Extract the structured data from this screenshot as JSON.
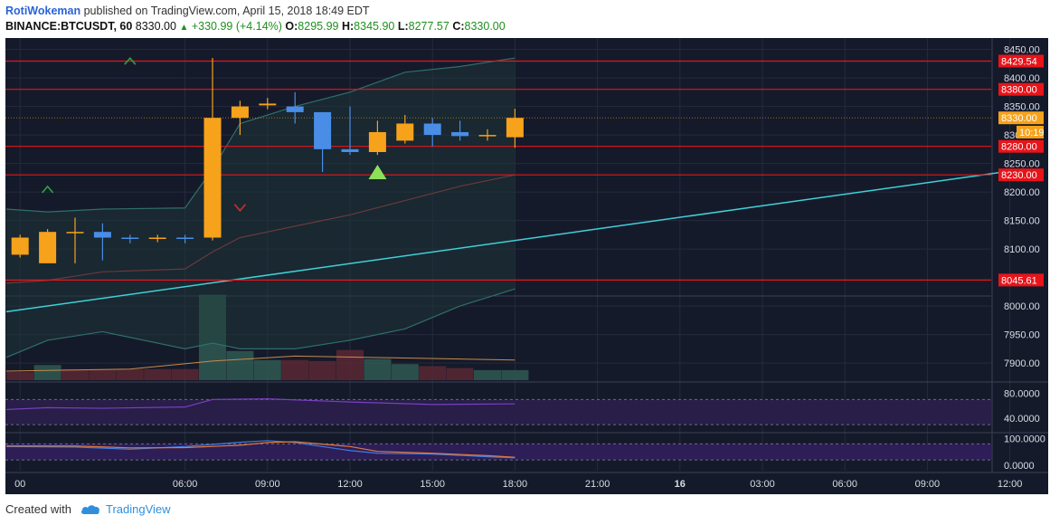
{
  "header": {
    "author": "RotiWokeman",
    "published_text": "published on TradingView.com, April 15, 2018 18:49 EDT"
  },
  "symbol": {
    "name": "BINANCE:BTCUSDT, 60",
    "last": "8330.00",
    "change": "+330.99 (+4.14%)",
    "open_label": "O:",
    "open": "8295.99",
    "high_label": "H:",
    "high": "8345.90",
    "low_label": "L:",
    "low": "8277.57",
    "close_label": "C:",
    "close": "8330.00"
  },
  "footer": {
    "created_with": "Created with",
    "brand": "TradingView"
  },
  "colors": {
    "background": "#151a2a",
    "up_candle": "#f7a21b",
    "down_candle": "#4a8de6",
    "level_line": "#e8141a",
    "trend_line": "#3fd0d8",
    "bollinger": "#2f6f6a",
    "rsi": "#7a3fc2"
  },
  "chart_data": {
    "type": "candlestick",
    "symbol": "BINANCE:BTCUSDT",
    "interval": "60",
    "price_axis": {
      "ylim": [
        7870,
        8470
      ],
      "ticks": [
        "8450.00",
        "8400.00",
        "8350.00",
        "8300.00",
        "8250.00",
        "8200.00",
        "8150.00",
        "8100.00",
        "8000.00",
        "7950.00",
        "7900.00"
      ],
      "tick_values": [
        8450,
        8400,
        8350,
        8300,
        8250,
        8200,
        8150,
        8100,
        8000,
        7950,
        7900
      ]
    },
    "time_axis": {
      "labels": [
        "00",
        "06:00",
        "09:00",
        "12:00",
        "15:00",
        "18:00",
        "21:00",
        "16",
        "03:00",
        "06:00",
        "09:00",
        "12:00"
      ],
      "bold": [
        false,
        false,
        false,
        false,
        false,
        false,
        false,
        true,
        false,
        false,
        false,
        false
      ],
      "hours": [
        0,
        6,
        9,
        12,
        15,
        18,
        21,
        24,
        27,
        30,
        33,
        36
      ]
    },
    "candles": [
      {
        "t": 0,
        "o": 8090,
        "h": 8125,
        "l": 8085,
        "c": 8120
      },
      {
        "t": 1,
        "o": 8075,
        "h": 8135,
        "l": 8075,
        "c": 8130
      },
      {
        "t": 2,
        "o": 8130,
        "h": 8155,
        "l": 8075,
        "c": 8130
      },
      {
        "t": 3,
        "o": 8130,
        "h": 8145,
        "l": 8080,
        "c": 8120
      },
      {
        "t": 4,
        "o": 8120,
        "h": 8125,
        "l": 8110,
        "c": 8118
      },
      {
        "t": 5,
        "o": 8118,
        "h": 8125,
        "l": 8112,
        "c": 8120
      },
      {
        "t": 6,
        "o": 8120,
        "h": 8125,
        "l": 8110,
        "c": 8118
      },
      {
        "t": 7,
        "o": 8120,
        "h": 8435,
        "l": 8115,
        "c": 8330
      },
      {
        "t": 8,
        "o": 8330,
        "h": 8360,
        "l": 8300,
        "c": 8350
      },
      {
        "t": 9,
        "o": 8352,
        "h": 8365,
        "l": 8345,
        "c": 8355
      },
      {
        "t": 10,
        "o": 8350,
        "h": 8375,
        "l": 8320,
        "c": 8340
      },
      {
        "t": 11,
        "o": 8340,
        "h": 8340,
        "l": 8235,
        "c": 8275
      },
      {
        "t": 12,
        "o": 8275,
        "h": 8350,
        "l": 8265,
        "c": 8270
      },
      {
        "t": 13,
        "o": 8270,
        "h": 8325,
        "l": 8265,
        "c": 8305
      },
      {
        "t": 14,
        "o": 8290,
        "h": 8335,
        "l": 8285,
        "c": 8320
      },
      {
        "t": 15,
        "o": 8320,
        "h": 8330,
        "l": 8280,
        "c": 8300
      },
      {
        "t": 16,
        "o": 8305,
        "h": 8325,
        "l": 8290,
        "c": 8298
      },
      {
        "t": 17,
        "o": 8298,
        "h": 8310,
        "l": 8290,
        "c": 8300
      },
      {
        "t": 18,
        "o": 8295.99,
        "h": 8345.9,
        "l": 8277.57,
        "c": 8330.0
      }
    ],
    "horizontal_levels": [
      {
        "label": "8429.54",
        "value": 8429.54
      },
      {
        "label": "8380.00",
        "value": 8380.0
      },
      {
        "label": "8280.00",
        "value": 8280.0
      },
      {
        "label": "8230.00",
        "value": 8230.0
      },
      {
        "label": "8045.61",
        "value": 8045.61
      }
    ],
    "last_price_tag": {
      "label": "8330.00",
      "value": 8330.0
    },
    "countdown_tag": {
      "label": "10:19",
      "value": 8305
    },
    "trend_line": {
      "start": {
        "t": -0.5,
        "price": 7990
      },
      "end": {
        "t": 36.5,
        "price": 8240
      }
    },
    "bollinger": {
      "t": [
        -0.5,
        1,
        3,
        6,
        7,
        8,
        10,
        12,
        14,
        16,
        18
      ],
      "upper": [
        8170,
        8165,
        8170,
        8172,
        8240,
        8320,
        8350,
        8375,
        8410,
        8420,
        8435
      ],
      "basis": [
        8040,
        8045,
        8060,
        8065,
        8095,
        8120,
        8140,
        8160,
        8185,
        8210,
        8230
      ],
      "lower": [
        7910,
        7940,
        7955,
        7925,
        7935,
        7925,
        7925,
        7940,
        7960,
        8000,
        8030
      ]
    },
    "volume": {
      "t": [
        0,
        1,
        2,
        3,
        4,
        5,
        6,
        7,
        8,
        9,
        10,
        11,
        12,
        13,
        14,
        15,
        16,
        17,
        18
      ],
      "values": [
        8,
        15,
        11,
        11,
        11,
        11,
        11,
        85,
        29,
        20,
        20,
        19,
        30,
        21,
        16,
        14,
        12,
        10,
        10
      ],
      "up": [
        false,
        true,
        false,
        false,
        false,
        false,
        false,
        true,
        true,
        true,
        false,
        false,
        false,
        true,
        true,
        false,
        false,
        true,
        true
      ],
      "volume_ma_t": [
        -0.5,
        4,
        7,
        10,
        14,
        18
      ],
      "volume_ma": [
        9,
        11,
        19,
        24,
        22,
        20
      ]
    },
    "signals": [
      {
        "t": 1,
        "type": "long",
        "price": 8205
      },
      {
        "t": 4,
        "type": "long",
        "price": 8430
      },
      {
        "t": 8,
        "type": "short",
        "price": 8172
      },
      {
        "t": 13,
        "type": "buy-triangle",
        "price": 8235
      }
    ],
    "rsi": {
      "ticks": [
        "80.0000",
        "40.0000"
      ],
      "tick_values": [
        80,
        40
      ],
      "ylim": [
        20,
        95
      ],
      "band": [
        30,
        70
      ],
      "t": [
        -0.5,
        1,
        3,
        6,
        7,
        9,
        12,
        15,
        18
      ],
      "values": [
        54,
        57,
        56,
        58,
        70,
        71,
        66,
        62,
        63
      ]
    },
    "oscillator": {
      "ticks": [
        "100.0000",
        "0.0000"
      ],
      "tick_values": [
        100,
        0
      ],
      "ylim": [
        -20,
        115
      ],
      "band": [
        20,
        80
      ],
      "t": [
        -0.5,
        2,
        4,
        6,
        8,
        9,
        10,
        12,
        13,
        15,
        17,
        18
      ],
      "k": [
        70,
        68,
        60,
        70,
        86,
        92,
        85,
        55,
        45,
        42,
        32,
        28
      ],
      "d": [
        72,
        72,
        65,
        66,
        75,
        85,
        88,
        70,
        52,
        45,
        36,
        30
      ]
    }
  }
}
